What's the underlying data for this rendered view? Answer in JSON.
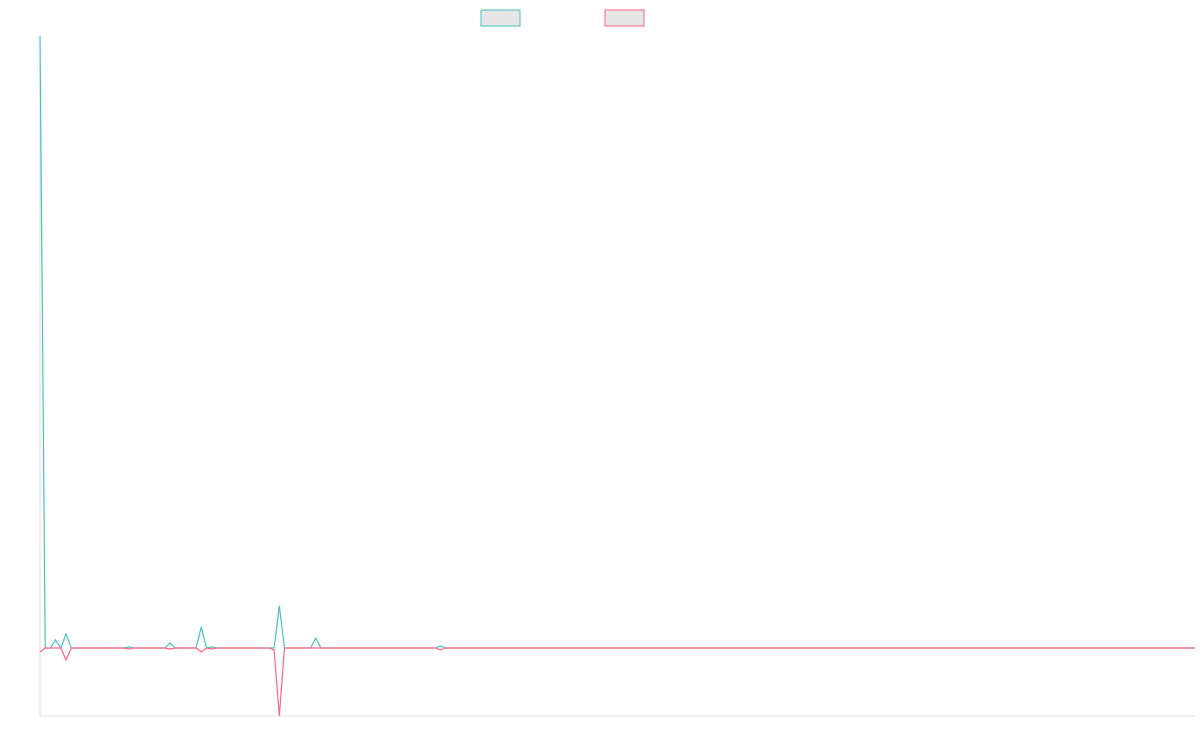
{
  "chart_data": {
    "type": "line",
    "categories": [
      null,
      null,
      null,
      null,
      null,
      null,
      null,
      null,
      null,
      null,
      null,
      null,
      null,
      null,
      null,
      null,
      null,
      null,
      null,
      null,
      null,
      null,
      null,
      null,
      null,
      null,
      null,
      null,
      null,
      null,
      null,
      null,
      null,
      null,
      null,
      null,
      null,
      null,
      null,
      null,
      null,
      null,
      null,
      null,
      null,
      null,
      null,
      null,
      null,
      null,
      null,
      null,
      null,
      null,
      null,
      null,
      null,
      null,
      null,
      null,
      null,
      null,
      null,
      null,
      null,
      null,
      null,
      null,
      null,
      null,
      null,
      null,
      null,
      null,
      null,
      null,
      null,
      null,
      null,
      null,
      null,
      null,
      null,
      null,
      null,
      null,
      null,
      null,
      null,
      null,
      null,
      null,
      null,
      null,
      null,
      null,
      null,
      null,
      null,
      null,
      null,
      null,
      null,
      null,
      null,
      null,
      null,
      null,
      null,
      null,
      null,
      null,
      null,
      null,
      null,
      null,
      null,
      null,
      null,
      null,
      null,
      null,
      null,
      null,
      null,
      null,
      null,
      null,
      null,
      null,
      null,
      null,
      null,
      null,
      null,
      null,
      null,
      null,
      null,
      null,
      null,
      null,
      null,
      null,
      null,
      null,
      null,
      null,
      null,
      null,
      null,
      null,
      null,
      null,
      null,
      null,
      null,
      null,
      null,
      null,
      null,
      null,
      null,
      null,
      null,
      null,
      null,
      null,
      null,
      null,
      null,
      null,
      null,
      null,
      null,
      null,
      null,
      null,
      null,
      null,
      null,
      null,
      null,
      null,
      null,
      null,
      null,
      null,
      null,
      null,
      null,
      null,
      null,
      null,
      null,
      null,
      null,
      null,
      null,
      null,
      null,
      null,
      null,
      null,
      null,
      null,
      null,
      null,
      null,
      null,
      null,
      null,
      null,
      null,
      null,
      null,
      null,
      null,
      null,
      null,
      null,
      null,
      null
    ],
    "series": [
      {
        "color": "#4bc0c0",
        "values": [
          612,
          0,
          0,
          8,
          0,
          14,
          0,
          0,
          0,
          0,
          0,
          0,
          0,
          0,
          0,
          0,
          0,
          1,
          0,
          0,
          0,
          0,
          0,
          0,
          0,
          5,
          0,
          0,
          0,
          0,
          0,
          21,
          0,
          1,
          0,
          0,
          0,
          0,
          0,
          0,
          0,
          0,
          0,
          0,
          0,
          0,
          42,
          0,
          0,
          0,
          0,
          0,
          0,
          10,
          0,
          0,
          0,
          0,
          0,
          0,
          0,
          0,
          0,
          0,
          0,
          0,
          0,
          0,
          0,
          0,
          0,
          0,
          0,
          0,
          0,
          0,
          0,
          2,
          0,
          0,
          0,
          0,
          0,
          0,
          0,
          0,
          0,
          0,
          0,
          0,
          0,
          0,
          0,
          0,
          0,
          0,
          0,
          0,
          0,
          0,
          0,
          0,
          0,
          0,
          0,
          0,
          0,
          0,
          0,
          0,
          0,
          0,
          0,
          0,
          0,
          0,
          0,
          0,
          0,
          0,
          0,
          0,
          0,
          0,
          0,
          0,
          0,
          0,
          0,
          0,
          0,
          0,
          0,
          0,
          0,
          0,
          0,
          0,
          0,
          0,
          0,
          0,
          0,
          0,
          0,
          0,
          0,
          0,
          0,
          0,
          0,
          0,
          0,
          0,
          0,
          0,
          0,
          0,
          0,
          0,
          0,
          0,
          0,
          0,
          0,
          0,
          0,
          0,
          0,
          0,
          0,
          0,
          0,
          0,
          0,
          0,
          0,
          0,
          0,
          0,
          0,
          0,
          0,
          0,
          0,
          0,
          0,
          0,
          0,
          0,
          0,
          0,
          0,
          0,
          0,
          0,
          0,
          0,
          0,
          0,
          0,
          0,
          0,
          0,
          0,
          0,
          0,
          0,
          0,
          0,
          0,
          0,
          0,
          0,
          0,
          0,
          0,
          0,
          0,
          0,
          0,
          0,
          0
        ]
      },
      {
        "color": "#ff6384",
        "values": [
          -4,
          0,
          0,
          0,
          0,
          -12,
          0,
          0,
          0,
          0,
          0,
          0,
          0,
          0,
          0,
          0,
          0,
          -1,
          0,
          0,
          0,
          0,
          0,
          0,
          0,
          -1,
          0,
          0,
          0,
          0,
          0,
          -4,
          0,
          -1,
          0,
          0,
          0,
          0,
          0,
          0,
          0,
          0,
          0,
          0,
          0,
          -2,
          -68,
          0,
          0,
          0,
          0,
          0,
          0,
          0,
          0,
          0,
          0,
          0,
          0,
          0,
          0,
          0,
          0,
          0,
          0,
          0,
          0,
          0,
          0,
          0,
          0,
          0,
          0,
          0,
          0,
          0,
          0,
          -2,
          0,
          0,
          0,
          0,
          0,
          0,
          0,
          0,
          0,
          0,
          0,
          0,
          0,
          0,
          0,
          0,
          0,
          0,
          0,
          0,
          0,
          0,
          0,
          0,
          0,
          0,
          0,
          0,
          0,
          0,
          0,
          0,
          0,
          0,
          0,
          0,
          0,
          0,
          0,
          0,
          0,
          0,
          0,
          0,
          0,
          0,
          0,
          0,
          0,
          0,
          0,
          0,
          0,
          0,
          0,
          0,
          0,
          0,
          0,
          0,
          0,
          0,
          0,
          0,
          0,
          0,
          0,
          0,
          0,
          0,
          0,
          0,
          0,
          0,
          0,
          0,
          0,
          0,
          0,
          0,
          0,
          0,
          0,
          0,
          0,
          0,
          0,
          0,
          0,
          0,
          0,
          0,
          0,
          0,
          0,
          0,
          0,
          0,
          0,
          0,
          0,
          0,
          0,
          0,
          0,
          0,
          0,
          0,
          0,
          0,
          0,
          0,
          0,
          0,
          0,
          0,
          0,
          0,
          0,
          0,
          0,
          0,
          0,
          0,
          0,
          0,
          0,
          0,
          0,
          0,
          0,
          0,
          0,
          0,
          0,
          0,
          0,
          0,
          0,
          0,
          0,
          0,
          0,
          0,
          0
        ]
      }
    ],
    "ylim": [
      -68,
      612
    ]
  }
}
